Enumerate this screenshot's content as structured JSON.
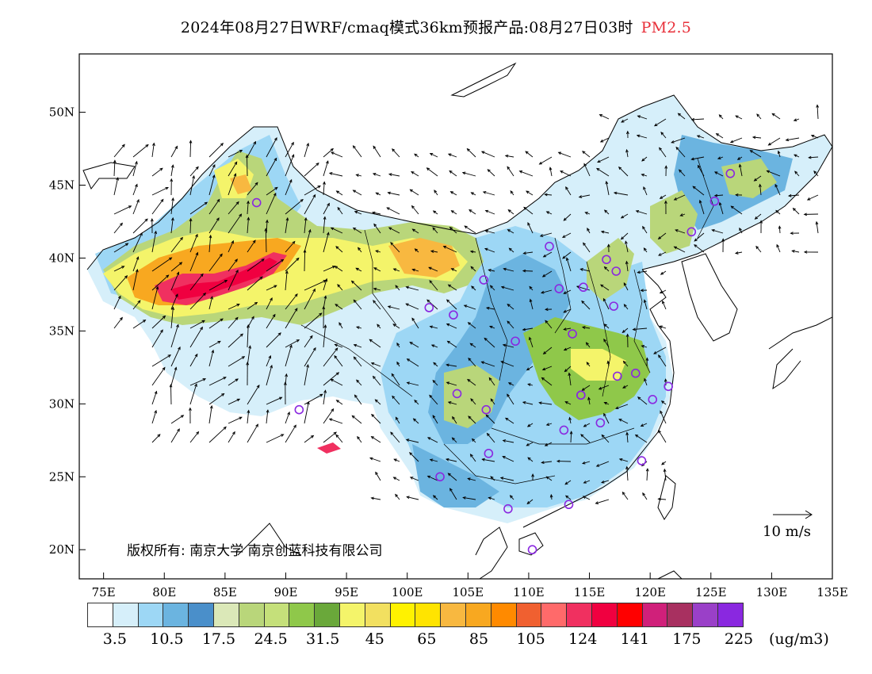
{
  "header": {
    "title": "2024年08月27日WRF/cmaq模式36km预报产品:08月27日03时",
    "variable": "PM2.5"
  },
  "axes": {
    "lat_labels": [
      "50N",
      "45N",
      "40N",
      "35N",
      "30N",
      "25N",
      "20N"
    ],
    "lon_labels": [
      "75E",
      "80E",
      "85E",
      "90E",
      "95E",
      "100E",
      "105E",
      "110E",
      "115E",
      "120E",
      "125E",
      "130E",
      "135E"
    ]
  },
  "copyright": "版权所有: 南京大学  南京创蓝科技有限公司",
  "wind_scale": {
    "label": "10 m/s"
  },
  "colorbar": {
    "colors": [
      "#ffffff",
      "#d6effa",
      "#9dd7f5",
      "#6bb4e0",
      "#4a8fca",
      "#dbe8b8",
      "#b9d67a",
      "#c5e07a",
      "#8fc84a",
      "#6aa83a",
      "#f4f46a",
      "#f2e060",
      "#fff200",
      "#ffe400",
      "#f8b840",
      "#f8a820",
      "#ff8a00",
      "#f06030",
      "#ff6a6a",
      "#f03060",
      "#f00040",
      "#ff0000",
      "#d0207a",
      "#a83060",
      "#9a40c8",
      "#8a28e0"
    ],
    "labels": [
      "3.5",
      "10.5",
      "17.5",
      "24.5",
      "31.5",
      "45",
      "65",
      "85",
      "105",
      "124",
      "141",
      "175",
      "225"
    ],
    "unit": "(ug/m3)"
  },
  "stations": [
    {
      "lon": 87.6,
      "lat": 43.8
    },
    {
      "lon": 101.8,
      "lat": 36.6
    },
    {
      "lon": 103.8,
      "lat": 36.1
    },
    {
      "lon": 106.3,
      "lat": 38.5
    },
    {
      "lon": 111.7,
      "lat": 40.8
    },
    {
      "lon": 112.5,
      "lat": 37.9
    },
    {
      "lon": 114.5,
      "lat": 38.0
    },
    {
      "lon": 116.4,
      "lat": 39.9
    },
    {
      "lon": 117.2,
      "lat": 39.1
    },
    {
      "lon": 117.0,
      "lat": 36.7
    },
    {
      "lon": 113.6,
      "lat": 34.8
    },
    {
      "lon": 108.9,
      "lat": 34.3
    },
    {
      "lon": 104.1,
      "lat": 30.7
    },
    {
      "lon": 106.5,
      "lat": 29.6
    },
    {
      "lon": 114.3,
      "lat": 30.6
    },
    {
      "lon": 117.3,
      "lat": 31.9
    },
    {
      "lon": 118.8,
      "lat": 32.1
    },
    {
      "lon": 120.2,
      "lat": 30.3
    },
    {
      "lon": 121.5,
      "lat": 31.2
    },
    {
      "lon": 112.9,
      "lat": 28.2
    },
    {
      "lon": 115.9,
      "lat": 28.7
    },
    {
      "lon": 119.3,
      "lat": 26.1
    },
    {
      "lon": 113.3,
      "lat": 23.1
    },
    {
      "lon": 108.3,
      "lat": 22.8
    },
    {
      "lon": 110.3,
      "lat": 20.0
    },
    {
      "lon": 106.7,
      "lat": 26.6
    },
    {
      "lon": 102.7,
      "lat": 25.0
    },
    {
      "lon": 91.1,
      "lat": 29.6
    },
    {
      "lon": 123.4,
      "lat": 41.8
    },
    {
      "lon": 125.3,
      "lat": 43.9
    },
    {
      "lon": 126.6,
      "lat": 45.8
    },
    {
      "lon": 114.3,
      "lat": 30.6
    }
  ]
}
